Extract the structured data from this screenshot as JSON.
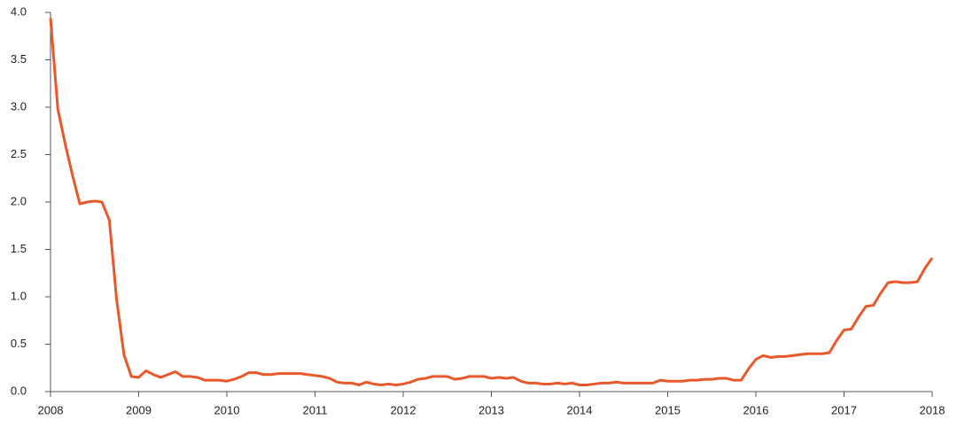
{
  "chart_data": {
    "type": "line",
    "x": [
      2008,
      2008.083,
      2008.167,
      2008.25,
      2008.333,
      2008.417,
      2008.5,
      2008.583,
      2008.667,
      2008.75,
      2008.833,
      2008.917,
      2009,
      2009.083,
      2009.167,
      2009.25,
      2009.333,
      2009.417,
      2009.5,
      2009.583,
      2009.667,
      2009.75,
      2009.833,
      2009.917,
      2010,
      2010.083,
      2010.167,
      2010.25,
      2010.333,
      2010.417,
      2010.5,
      2010.583,
      2010.667,
      2010.75,
      2010.833,
      2010.917,
      2011,
      2011.083,
      2011.167,
      2011.25,
      2011.333,
      2011.417,
      2011.5,
      2011.583,
      2011.667,
      2011.75,
      2011.833,
      2011.917,
      2012,
      2012.083,
      2012.167,
      2012.25,
      2012.333,
      2012.417,
      2012.5,
      2012.583,
      2012.667,
      2012.75,
      2012.833,
      2012.917,
      2013,
      2013.083,
      2013.167,
      2013.25,
      2013.333,
      2013.417,
      2013.5,
      2013.583,
      2013.667,
      2013.75,
      2013.833,
      2013.917,
      2014,
      2014.083,
      2014.167,
      2014.25,
      2014.333,
      2014.417,
      2014.5,
      2014.583,
      2014.667,
      2014.75,
      2014.833,
      2014.917,
      2015,
      2015.083,
      2015.167,
      2015.25,
      2015.333,
      2015.417,
      2015.5,
      2015.583,
      2015.667,
      2015.75,
      2015.833,
      2015.917,
      2016,
      2016.083,
      2016.167,
      2016.25,
      2016.333,
      2016.417,
      2016.5,
      2016.583,
      2016.667,
      2016.75,
      2016.833,
      2016.917,
      2017,
      2017.083,
      2017.167,
      2017.25,
      2017.333,
      2017.417,
      2017.5,
      2017.583,
      2017.667,
      2017.75,
      2017.833,
      2017.917,
      2018
    ],
    "series": [
      {
        "color": "#e8582a",
        "values": [
          3.94,
          2.98,
          2.61,
          2.28,
          1.98,
          2.0,
          2.01,
          2.0,
          1.81,
          0.97,
          0.39,
          0.16,
          0.15,
          0.22,
          0.18,
          0.15,
          0.18,
          0.21,
          0.16,
          0.16,
          0.15,
          0.12,
          0.12,
          0.12,
          0.11,
          0.13,
          0.16,
          0.2,
          0.2,
          0.18,
          0.18,
          0.19,
          0.19,
          0.19,
          0.19,
          0.18,
          0.17,
          0.16,
          0.14,
          0.1,
          0.09,
          0.09,
          0.07,
          0.1,
          0.08,
          0.07,
          0.08,
          0.07,
          0.08,
          0.1,
          0.13,
          0.14,
          0.16,
          0.16,
          0.16,
          0.13,
          0.14,
          0.16,
          0.16,
          0.16,
          0.14,
          0.15,
          0.14,
          0.15,
          0.11,
          0.09,
          0.09,
          0.08,
          0.08,
          0.09,
          0.08,
          0.09,
          0.07,
          0.07,
          0.08,
          0.09,
          0.09,
          0.1,
          0.09,
          0.09,
          0.09,
          0.09,
          0.09,
          0.12,
          0.11,
          0.11,
          0.11,
          0.12,
          0.12,
          0.13,
          0.13,
          0.14,
          0.14,
          0.12,
          0.12,
          0.24,
          0.34,
          0.38,
          0.36,
          0.37,
          0.37,
          0.38,
          0.39,
          0.4,
          0.4,
          0.4,
          0.41,
          0.54,
          0.65,
          0.66,
          0.79,
          0.9,
          0.91,
          1.04,
          1.15,
          1.16,
          1.15,
          1.15,
          1.16,
          1.3,
          1.41
        ]
      }
    ],
    "xlim": [
      2008,
      2018
    ],
    "xticks": [
      2008,
      2009,
      2010,
      2011,
      2012,
      2013,
      2014,
      2015,
      2016,
      2017,
      2018
    ],
    "ylim": [
      0,
      4
    ],
    "yticks": [
      {
        "value": 0,
        "label": "0.0"
      },
      0.5,
      {
        "value": 1,
        "label": "1.0"
      },
      1.5,
      {
        "value": 2,
        "label": "2.0"
      },
      2.5,
      {
        "value": 3,
        "label": "3.0"
      },
      3.5,
      {
        "value": 4,
        "label": "4.0"
      }
    ]
  }
}
